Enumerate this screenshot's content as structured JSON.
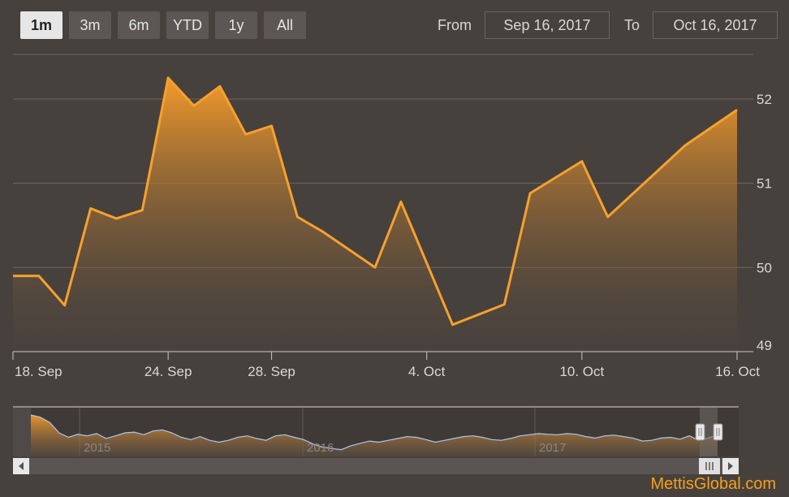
{
  "range_selector": {
    "buttons": [
      "1m",
      "3m",
      "6m",
      "YTD",
      "1y",
      "All"
    ],
    "active": "1m"
  },
  "date_range": {
    "from_label": "From",
    "from_value": "Sep 16, 2017",
    "to_label": "To",
    "to_value": "Oct 16, 2017"
  },
  "colors": {
    "line": "#f6a12d",
    "area_top": "#f59a2a",
    "area_bottom": "#4c4440",
    "grid": "#6e6864",
    "navigator_line": "#a9c7ee"
  },
  "chart_data": {
    "type": "area",
    "x_type": "datetime",
    "ylim": [
      49,
      52.5
    ],
    "y_ticks": [
      49,
      50,
      51,
      52
    ],
    "x_ticks": [
      {
        "date": "2017-09-18",
        "label": "18. Sep"
      },
      {
        "date": "2017-09-24",
        "label": "24. Sep"
      },
      {
        "date": "2017-09-28",
        "label": "28. Sep"
      },
      {
        "date": "2017-10-04",
        "label": "4. Oct"
      },
      {
        "date": "2017-10-10",
        "label": "10. Oct"
      },
      {
        "date": "2017-10-16",
        "label": "16. Oct"
      }
    ],
    "x_range": [
      "2017-09-18",
      "2017-10-16"
    ],
    "points": [
      {
        "date": "2017-09-18",
        "value": 49.9
      },
      {
        "date": "2017-09-19",
        "value": 49.9
      },
      {
        "date": "2017-09-20",
        "value": 49.55
      },
      {
        "date": "2017-09-21",
        "value": 50.7
      },
      {
        "date": "2017-09-22",
        "value": 50.58
      },
      {
        "date": "2017-09-23",
        "value": 50.68
      },
      {
        "date": "2017-09-24",
        "value": 52.25
      },
      {
        "date": "2017-09-25",
        "value": 51.92
      },
      {
        "date": "2017-09-26",
        "value": 52.15
      },
      {
        "date": "2017-09-27",
        "value": 51.58
      },
      {
        "date": "2017-09-28",
        "value": 51.68
      },
      {
        "date": "2017-09-29",
        "value": 50.6
      },
      {
        "date": "2017-09-30",
        "value": 50.42
      },
      {
        "date": "2017-10-02",
        "value": 50.0
      },
      {
        "date": "2017-10-03",
        "value": 50.78
      },
      {
        "date": "2017-10-05",
        "value": 49.32
      },
      {
        "date": "2017-10-07",
        "value": 49.56
      },
      {
        "date": "2017-10-08",
        "value": 50.88
      },
      {
        "date": "2017-10-10",
        "value": 51.26
      },
      {
        "date": "2017-10-11",
        "value": 50.6
      },
      {
        "date": "2017-10-14",
        "value": 51.45
      },
      {
        "date": "2017-10-16",
        "value": 51.87
      }
    ],
    "navigator": {
      "year_labels": [
        "2015",
        "2016",
        "2017"
      ],
      "series": [
        0.98,
        0.92,
        0.78,
        0.5,
        0.38,
        0.46,
        0.42,
        0.48,
        0.35,
        0.42,
        0.5,
        0.52,
        0.45,
        0.55,
        0.58,
        0.5,
        0.38,
        0.32,
        0.4,
        0.3,
        0.25,
        0.3,
        0.38,
        0.42,
        0.35,
        0.3,
        0.42,
        0.45,
        0.38,
        0.32,
        0.2,
        0.12,
        0.08,
        0.05,
        0.15,
        0.22,
        0.28,
        0.25,
        0.3,
        0.35,
        0.4,
        0.38,
        0.32,
        0.25,
        0.3,
        0.35,
        0.4,
        0.42,
        0.38,
        0.32,
        0.3,
        0.35,
        0.42,
        0.45,
        0.48,
        0.46,
        0.45,
        0.48,
        0.46,
        0.4,
        0.36,
        0.42,
        0.44,
        0.4,
        0.36,
        0.28,
        0.3,
        0.36,
        0.38,
        0.33,
        0.42,
        0.3,
        0.36,
        0.45
      ]
    }
  },
  "watermark": "MettisGlobal.com"
}
